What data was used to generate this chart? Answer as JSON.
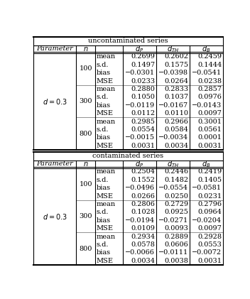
{
  "title_top": "uncontaminated series",
  "title_bottom": "contaminated series",
  "param_label": "d = 0.3",
  "uncontaminated": [
    [
      "100",
      "mean",
      "0.2699",
      "0.2602",
      "0.2459"
    ],
    [
      "",
      "s.d.",
      "0.1497",
      "0.1575",
      "0.1444"
    ],
    [
      "",
      "bias",
      "−0.0301",
      "−0.0398",
      "−0.0541"
    ],
    [
      "",
      "MSE",
      "0.0233",
      "0.0264",
      "0.0238"
    ],
    [
      "300",
      "mean",
      "0.2880",
      "0.2833",
      "0.2857"
    ],
    [
      "",
      "s.d.",
      "0.1050",
      "0.1037",
      "0.0976"
    ],
    [
      "",
      "bias",
      "−0.0119",
      "−0.0167",
      "−0.0143"
    ],
    [
      "",
      "MSE",
      "0.0112",
      "0.0110",
      "0.0097"
    ],
    [
      "800",
      "mean",
      "0.2985",
      "0.2966",
      "0.3001"
    ],
    [
      "",
      "s.d.",
      "0.0554",
      "0.0584",
      "0.0561"
    ],
    [
      "",
      "bias",
      "−0.0015",
      "−0.0034",
      "0.0001"
    ],
    [
      "",
      "MSE",
      "0.0031",
      "0.0034",
      "0.0031"
    ]
  ],
  "contaminated": [
    [
      "100",
      "mean",
      "0.2504",
      "0.2446",
      "0.2419"
    ],
    [
      "",
      "s.d.",
      "0.1552",
      "0.1482",
      "0.1405"
    ],
    [
      "",
      "bias",
      "−0.0496",
      "−0.0554",
      "−0.0581"
    ],
    [
      "",
      "MSE",
      "0.0266",
      "0.0250",
      "0.0231"
    ],
    [
      "300",
      "mean",
      "0.2806",
      "0.2729",
      "0.2796"
    ],
    [
      "",
      "s.d.",
      "0.1028",
      "0.0925",
      "0.0964"
    ],
    [
      "",
      "bias",
      "−0.0194",
      "−0.0271",
      "−0.0204"
    ],
    [
      "",
      "MSE",
      "0.0109",
      "0.0093",
      "0.0097"
    ],
    [
      "800",
      "mean",
      "0.2934",
      "0.2889",
      "0.2928"
    ],
    [
      "",
      "s.d.",
      "0.0578",
      "0.0606",
      "0.0553"
    ],
    [
      "",
      "bias",
      "−0.0066",
      "−0.0111",
      "−0.0072"
    ],
    [
      "",
      "MSE",
      "0.0034",
      "0.0038",
      "0.0031"
    ]
  ],
  "font_size": 7.0,
  "figsize": [
    3.52,
    4.21
  ],
  "dpi": 100
}
